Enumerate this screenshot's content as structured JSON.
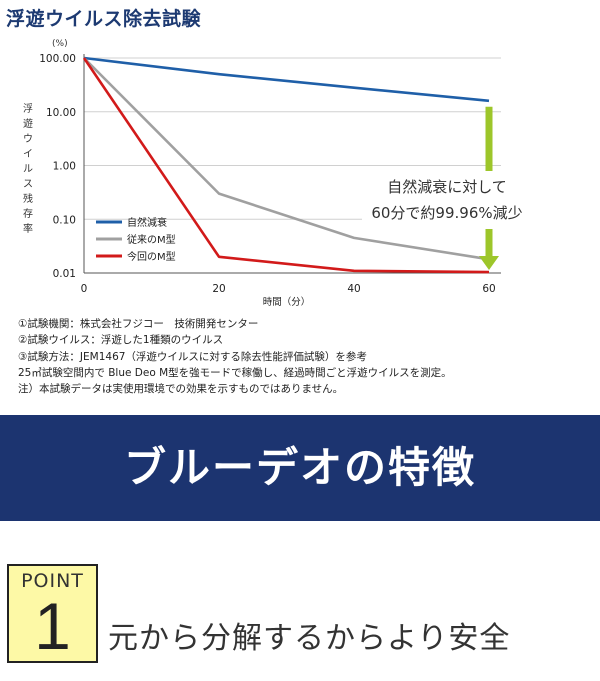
{
  "title": "浮遊ウイルス除去試験",
  "chart_data": {
    "type": "line",
    "y_scale": "log",
    "y_unit": "(%)",
    "ylabel": "浮遊ウイルス残存率",
    "xlabel": "時間（分）",
    "x": [
      0,
      20,
      40,
      60
    ],
    "xticks": [
      "0",
      "20",
      "40",
      "60"
    ],
    "yticks": [
      "100.00",
      "10.00",
      "1.00",
      "0.10",
      "0.01"
    ],
    "ylim": [
      0.01,
      100
    ],
    "xlim": [
      0,
      60
    ],
    "grid": true,
    "legend_position": "left",
    "series": [
      {
        "name": "自然減衰",
        "color": "#1f5fa8",
        "values": [
          100,
          50,
          28,
          16
        ]
      },
      {
        "name": "従来のM型",
        "color": "#a0a0a0",
        "values": [
          100,
          0.3,
          0.045,
          0.018
        ]
      },
      {
        "name": "今回のM型",
        "color": "#d21a1a",
        "values": [
          100,
          0.02,
          0.011,
          0.0104
        ]
      }
    ],
    "annotation": [
      "自然減衰に対して",
      "60分で約99.96%減少"
    ],
    "arrow_color": "#9dc62a"
  },
  "notes": [
    "①試験機関：株式会社フジコー　技術開発センター",
    "②試験ウイルス：浮遊した1種類のウイルス",
    "③試験方法：JEM1467（浮遊ウイルスに対する除去性能評価試験）を参考",
    "25㎥試験空間内で Blue Deo M型を強モードで稼働し、経過時間ごと浮遊ウイルスを測定。",
    "注）本試験データは実使用環境での効果を示すものではありません。"
  ],
  "banner": "ブルーデオの特徴",
  "point": {
    "label": "POINT",
    "number": "1",
    "title": "元から分解するからより安全"
  }
}
